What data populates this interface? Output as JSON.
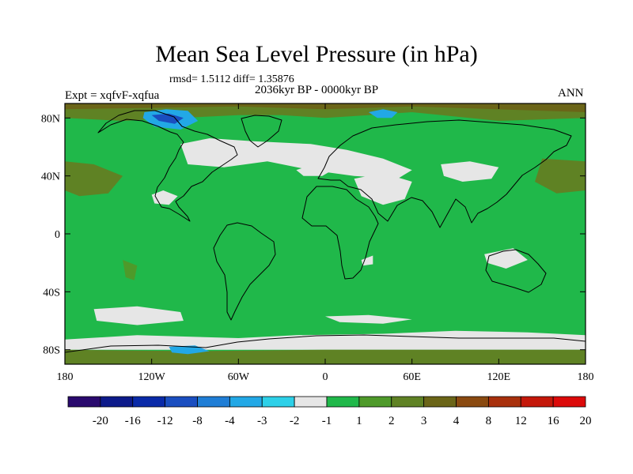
{
  "chart_data": {
    "type": "heatmap",
    "title": "Mean Sea Level Pressure (in hPa)",
    "stats_text": "rmsd= 1.5112 diff= 1.35876",
    "period": "2036kyr BP - 0000kyr BP",
    "experiment": "Expt = xqfvF-xqfua",
    "season": "ANN",
    "projection": "cylindrical equidistant",
    "x_range": [
      -180,
      180
    ],
    "y_range": [
      -90,
      90
    ],
    "x_ticks": [
      {
        "value": -180,
        "label": "180"
      },
      {
        "value": -120,
        "label": "120W"
      },
      {
        "value": -60,
        "label": "60W"
      },
      {
        "value": 0,
        "label": "0"
      },
      {
        "value": 60,
        "label": "60E"
      },
      {
        "value": 120,
        "label": "120E"
      },
      {
        "value": 180,
        "label": "180"
      }
    ],
    "y_ticks": [
      {
        "value": 80,
        "label": "80N"
      },
      {
        "value": 40,
        "label": "40N"
      },
      {
        "value": 0,
        "label": "0"
      },
      {
        "value": -40,
        "label": "40S"
      },
      {
        "value": -80,
        "label": "80S"
      }
    ],
    "colorbar": {
      "colors": [
        "#2a0a6e",
        "#0d1a8a",
        "#0a2aa8",
        "#1a4ec0",
        "#1f7ed6",
        "#22a8e6",
        "#2dd0e8",
        "#e6e6e6",
        "#20b84a",
        "#4e9a2a",
        "#5f8224",
        "#6b6518",
        "#8a4a10",
        "#a8300c",
        "#c4180a",
        "#dc0a0a"
      ],
      "labels": [
        "-20",
        "-16",
        "-12",
        "-8",
        "-4",
        "-3",
        "-2",
        "-1",
        "1",
        "2",
        "3",
        "4",
        "8",
        "12",
        "16",
        "20"
      ]
    },
    "field_regions": [
      {
        "category": "1 to 2",
        "color": "#20b84a",
        "lon": [
          -180,
          180
        ],
        "lat": [
          -90,
          90
        ]
      },
      {
        "category": "-1 to 1",
        "color": "#e6e6e6",
        "points": [
          [
            -100,
            62
          ],
          [
            -80,
            66
          ],
          [
            -50,
            64
          ],
          [
            -10,
            62
          ],
          [
            15,
            58
          ],
          [
            40,
            52
          ],
          [
            60,
            44
          ],
          [
            50,
            38
          ],
          [
            20,
            40
          ],
          [
            -10,
            44
          ],
          [
            -40,
            50
          ],
          [
            -70,
            46
          ],
          [
            -95,
            48
          ]
        ]
      },
      {
        "category": "-1 to 1",
        "color": "#e6e6e6",
        "points": [
          [
            20,
            38
          ],
          [
            40,
            42
          ],
          [
            60,
            36
          ],
          [
            55,
            24
          ],
          [
            40,
            20
          ],
          [
            25,
            26
          ]
        ]
      },
      {
        "category": "-1 to 1",
        "color": "#e6e6e6",
        "points": [
          [
            -20,
            44
          ],
          [
            -8,
            48
          ],
          [
            5,
            44
          ],
          [
            -2,
            40
          ],
          [
            -15,
            40
          ]
        ]
      },
      {
        "category": "-1 to 1",
        "color": "#e6e6e6",
        "points": [
          [
            80,
            48
          ],
          [
            100,
            50
          ],
          [
            120,
            46
          ],
          [
            115,
            38
          ],
          [
            95,
            36
          ],
          [
            82,
            40
          ]
        ]
      },
      {
        "category": "-1 to 1",
        "color": "#e6e6e6",
        "points": [
          [
            -120,
            27
          ],
          [
            -112,
            30
          ],
          [
            -102,
            26
          ],
          [
            -108,
            20
          ],
          [
            -118,
            21
          ]
        ]
      },
      {
        "category": "-1 to 1",
        "color": "#e6e6e6",
        "points": [
          [
            25,
            -18
          ],
          [
            33,
            -15
          ],
          [
            33,
            -21
          ],
          [
            26,
            -22
          ]
        ]
      },
      {
        "category": "-1 to 1",
        "color": "#e6e6e6",
        "points": [
          [
            110,
            -14
          ],
          [
            130,
            -10
          ],
          [
            140,
            -18
          ],
          [
            125,
            -24
          ],
          [
            112,
            -20
          ]
        ]
      },
      {
        "category": "-1 to 1",
        "color": "#e6e6e6",
        "points": [
          [
            -160,
            -52
          ],
          [
            -130,
            -50
          ],
          [
            -100,
            -54
          ],
          [
            -98,
            -60
          ],
          [
            -130,
            -63
          ],
          [
            -158,
            -60
          ]
        ]
      },
      {
        "category": "-1 to 1",
        "color": "#e6e6e6",
        "points": [
          [
            -180,
            -73
          ],
          [
            -130,
            -70
          ],
          [
            -60,
            -72
          ],
          [
            -20,
            -70
          ],
          [
            40,
            -69
          ],
          [
            90,
            -67
          ],
          [
            140,
            -68
          ],
          [
            180,
            -70
          ],
          [
            180,
            -80
          ],
          [
            -180,
            -80
          ]
        ]
      },
      {
        "category": "-1 to 1",
        "color": "#e6e6e6",
        "points": [
          [
            0,
            -57
          ],
          [
            30,
            -56
          ],
          [
            60,
            -59
          ],
          [
            40,
            -62
          ],
          [
            10,
            -61
          ]
        ]
      },
      {
        "category": "3 to 4",
        "color": "#5f8224",
        "points": [
          [
            -180,
            90
          ],
          [
            180,
            90
          ],
          [
            180,
            80
          ],
          [
            120,
            78
          ],
          [
            60,
            84
          ],
          [
            30,
            82
          ],
          [
            0,
            80
          ],
          [
            -30,
            82
          ],
          [
            -60,
            82
          ],
          [
            -100,
            80
          ],
          [
            -140,
            78
          ],
          [
            -180,
            80
          ]
        ]
      },
      {
        "category": "3 to 4",
        "color": "#5f8224",
        "points": [
          [
            -180,
            50
          ],
          [
            -160,
            48
          ],
          [
            -140,
            40
          ],
          [
            -150,
            28
          ],
          [
            -170,
            26
          ],
          [
            -180,
            30
          ]
        ]
      },
      {
        "category": "3 to 4",
        "color": "#5f8224",
        "points": [
          [
            150,
            52
          ],
          [
            180,
            50
          ],
          [
            180,
            30
          ],
          [
            160,
            28
          ],
          [
            145,
            36
          ]
        ]
      },
      {
        "category": "3 to 4",
        "color": "#5f8224",
        "points": [
          [
            -180,
            -80
          ],
          [
            -90,
            -81
          ],
          [
            0,
            -80
          ],
          [
            90,
            -80
          ],
          [
            180,
            -80
          ],
          [
            180,
            -90
          ],
          [
            -180,
            -90
          ]
        ]
      },
      {
        "category": "2 to 3",
        "color": "#4e9a2a",
        "points": [
          [
            -140,
            -18
          ],
          [
            -130,
            -22
          ],
          [
            -132,
            -32
          ],
          [
            -138,
            -30
          ]
        ]
      },
      {
        "category": "4 to 8",
        "color": "#6b6518",
        "points": [
          [
            -180,
            90
          ],
          [
            180,
            90
          ],
          [
            180,
            84
          ],
          [
            60,
            88
          ],
          [
            0,
            86
          ],
          [
            -60,
            88
          ],
          [
            -180,
            86
          ]
        ]
      },
      {
        "category": "-4 to -2",
        "color": "#22a8e6",
        "points": [
          [
            -125,
            84
          ],
          [
            -110,
            86
          ],
          [
            -95,
            85
          ],
          [
            -88,
            78
          ],
          [
            -100,
            72
          ],
          [
            -118,
            74
          ],
          [
            -126,
            80
          ]
        ]
      },
      {
        "category": "-8 to -4",
        "color": "#1a4ec0",
        "points": [
          [
            -120,
            82
          ],
          [
            -108,
            83
          ],
          [
            -98,
            80
          ],
          [
            -104,
            76
          ],
          [
            -115,
            78
          ]
        ]
      },
      {
        "category": "-4 to -2",
        "color": "#22a8e6",
        "points": [
          [
            30,
            84
          ],
          [
            40,
            86
          ],
          [
            50,
            84
          ],
          [
            46,
            80
          ],
          [
            36,
            80
          ]
        ]
      },
      {
        "category": "-4 to -2",
        "color": "#22a8e6",
        "points": [
          [
            -108,
            -78
          ],
          [
            -90,
            -77
          ],
          [
            -80,
            -81
          ],
          [
            -95,
            -83
          ],
          [
            -106,
            -82
          ]
        ]
      }
    ]
  }
}
